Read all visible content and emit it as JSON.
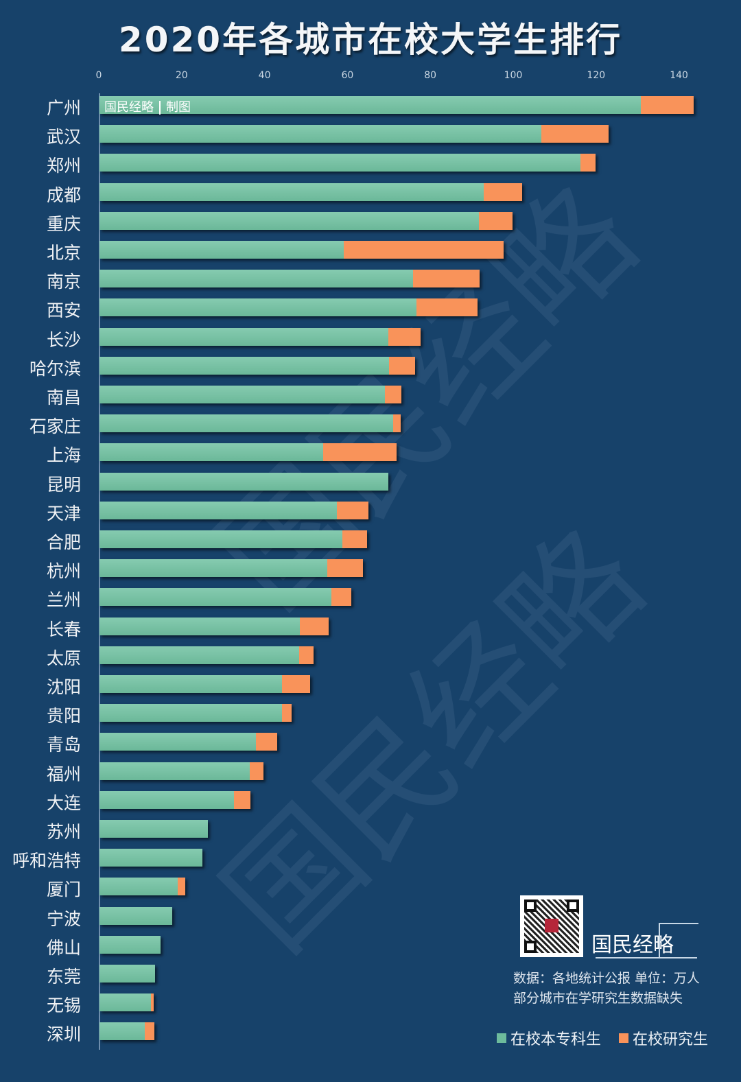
{
  "header": {
    "title": "2020年各城市在校大学生排行"
  },
  "credit": {
    "left": "国民经略",
    "right": "制图"
  },
  "watermark": "国民经略",
  "brand": {
    "name": "国民经略"
  },
  "notes": {
    "source": "数据：各地统计公报 单位：万人",
    "missing": "部分城市在学研究生数据缺失"
  },
  "legend": [
    {
      "label": "在校本专科生",
      "color": "#6dbb9c"
    },
    {
      "label": "在校研究生",
      "color": "#f9935a"
    }
  ],
  "colors": {
    "background": "#17426a",
    "undergrad": "#6dbb9c",
    "postgrad": "#f9935a"
  },
  "chart_data": {
    "type": "bar",
    "orientation": "horizontal",
    "stacked": true,
    "title": "2020年各城市在校大学生排行",
    "xlabel": "",
    "ylabel": "",
    "unit": "万人",
    "xlim": [
      0,
      140
    ],
    "x_ticks": [
      0,
      20,
      40,
      60,
      80,
      100,
      120,
      140
    ],
    "x_axis_position": "top",
    "grid": false,
    "legend_position": "bottom-right",
    "categories": [
      "广州",
      "武汉",
      "郑州",
      "成都",
      "重庆",
      "北京",
      "南京",
      "西安",
      "长沙",
      "哈尔滨",
      "南昌",
      "石家庄",
      "上海",
      "昆明",
      "天津",
      "合肥",
      "杭州",
      "兰州",
      "长春",
      "太原",
      "沈阳",
      "贵阳",
      "青岛",
      "福州",
      "大连",
      "苏州",
      "呼和浩特",
      "厦门",
      "宁波",
      "佛山",
      "东莞",
      "无锡",
      "深圳"
    ],
    "series": [
      {
        "name": "在校本专科生",
        "color": "#6dbb9c",
        "values": [
          130.6,
          106.6,
          116.1,
          92.7,
          91.6,
          58.9,
          75.7,
          76.5,
          69.7,
          69.9,
          68.9,
          70.9,
          54.0,
          69.7,
          57.3,
          58.6,
          55.0,
          56.0,
          48.3,
          48.2,
          44.0,
          44.0,
          37.7,
          36.3,
          32.5,
          26.2,
          24.8,
          18.9,
          17.5,
          14.7,
          13.4,
          12.4,
          10.9
        ]
      },
      {
        "name": "在校研究生",
        "color": "#f9935a",
        "values": [
          12.8,
          16.2,
          3.6,
          9.3,
          8.1,
          38.6,
          16.0,
          14.7,
          7.8,
          6.3,
          3.9,
          1.8,
          17.7,
          0,
          7.6,
          6.0,
          8.6,
          4.8,
          7.0,
          3.5,
          6.8,
          2.4,
          5.2,
          3.3,
          3.9,
          0,
          0,
          1.8,
          0,
          0,
          0,
          0.7,
          2.3
        ]
      }
    ]
  }
}
